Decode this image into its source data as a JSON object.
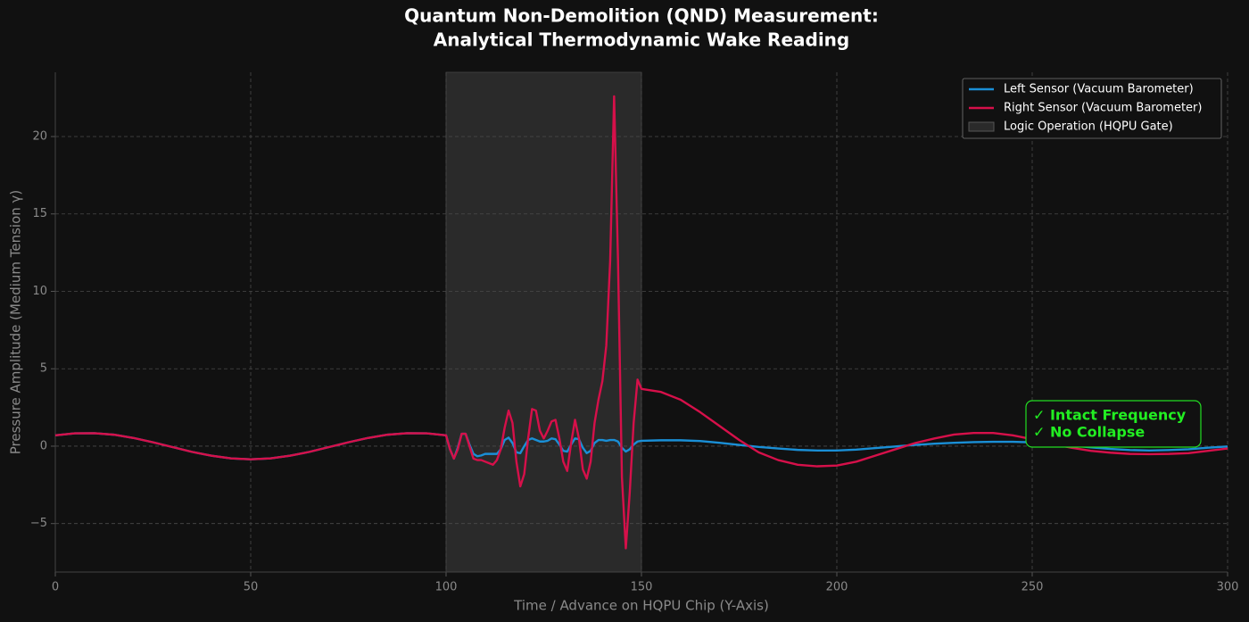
{
  "chart_data": {
    "type": "line",
    "title": [
      "Quantum Non-Demolition (QND) Measurement:",
      "Analytical Thermodynamic Wake Reading"
    ],
    "x_label": "Time / Advance on HQPU Chip (Y-Axis)",
    "y_label": "Pressure Amplitude (Medium Tension γ)",
    "xlim": [
      0,
      300
    ],
    "xticks": [
      0,
      50,
      100,
      150,
      200,
      250,
      300
    ],
    "ylim": [
      -8.13,
      24.15
    ],
    "yticks": [
      {
        "value": -5,
        "label": "−5"
      },
      0,
      5,
      10,
      15,
      20
    ],
    "grid": true,
    "legend": "upper right",
    "shaded_region": {
      "label": "Logic Operation (HQPU Gate)",
      "x": [
        100,
        150
      ],
      "color": "#2a2a2a"
    },
    "annotation": [
      "✓ Intact Frequency",
      "✓ No Collapse"
    ],
    "x": [
      0,
      5,
      10,
      15,
      20,
      25,
      30,
      35,
      40,
      45,
      50,
      55,
      60,
      65,
      70,
      75,
      80,
      85,
      90,
      95,
      100,
      101,
      102,
      103,
      104,
      105,
      106,
      107,
      108,
      109,
      110,
      111,
      112,
      113,
      114,
      115,
      116,
      117,
      118,
      119,
      120,
      121,
      122,
      123,
      124,
      125,
      126,
      127,
      128,
      129,
      130,
      131,
      132,
      133,
      134,
      135,
      136,
      137,
      138,
      139,
      140,
      141,
      142,
      143,
      144,
      145,
      146,
      147,
      148,
      149,
      150,
      155,
      160,
      165,
      170,
      175,
      180,
      185,
      190,
      195,
      200,
      205,
      210,
      215,
      220,
      225,
      230,
      235,
      240,
      245,
      250,
      255,
      260,
      265,
      270,
      275,
      280,
      285,
      290,
      295,
      300
    ],
    "series": [
      {
        "name": "Left Sensor (Vacuum Barometer)",
        "color": "#1a8fd6",
        "values": [
          0.7,
          0.83,
          0.84,
          0.74,
          0.53,
          0.25,
          -0.06,
          -0.37,
          -0.62,
          -0.79,
          -0.85,
          -0.79,
          -0.62,
          -0.37,
          -0.06,
          0.25,
          0.53,
          0.74,
          0.84,
          0.83,
          0.7,
          -0.2,
          -0.8,
          -0.1,
          0.8,
          0.8,
          0.1,
          -0.5,
          -0.65,
          -0.6,
          -0.5,
          -0.5,
          -0.5,
          -0.5,
          -0.2,
          0.4,
          0.55,
          0.2,
          -0.4,
          -0.45,
          0.0,
          0.4,
          0.5,
          0.4,
          0.3,
          0.3,
          0.35,
          0.5,
          0.45,
          0.1,
          -0.3,
          -0.35,
          0.1,
          0.5,
          0.45,
          -0.1,
          -0.45,
          -0.3,
          0.2,
          0.4,
          0.4,
          0.35,
          0.4,
          0.4,
          0.3,
          -0.1,
          -0.35,
          -0.2,
          0.1,
          0.3,
          0.35,
          0.38,
          0.38,
          0.33,
          0.22,
          0.08,
          -0.05,
          -0.15,
          -0.24,
          -0.28,
          -0.28,
          -0.22,
          -0.12,
          -0.02,
          0.08,
          0.16,
          0.22,
          0.26,
          0.28,
          0.28,
          0.25,
          0.15,
          0.05,
          -0.08,
          -0.18,
          -0.25,
          -0.28,
          -0.25,
          -0.2,
          -0.1,
          -0.02
        ]
      },
      {
        "name": "Right Sensor (Vacuum Barometer)",
        "color": "#d6104a",
        "values": [
          0.7,
          0.83,
          0.84,
          0.74,
          0.53,
          0.25,
          -0.06,
          -0.37,
          -0.62,
          -0.79,
          -0.85,
          -0.79,
          -0.62,
          -0.37,
          -0.06,
          0.25,
          0.53,
          0.74,
          0.84,
          0.83,
          0.7,
          -0.2,
          -0.8,
          -0.2,
          0.8,
          0.8,
          0.0,
          -0.8,
          -0.9,
          -0.9,
          -1.0,
          -1.1,
          -1.2,
          -0.9,
          -0.2,
          1.2,
          2.3,
          1.5,
          -1.0,
          -2.6,
          -1.8,
          0.5,
          2.4,
          2.3,
          1.0,
          0.5,
          1.0,
          1.6,
          1.7,
          0.5,
          -1.0,
          -1.6,
          0.2,
          1.7,
          0.5,
          -1.5,
          -2.1,
          -1.0,
          1.5,
          3.0,
          4.2,
          6.5,
          12.0,
          22.6,
          12.0,
          -2.0,
          -6.6,
          -3.0,
          1.5,
          4.3,
          3.7,
          3.5,
          3.0,
          2.2,
          1.3,
          0.4,
          -0.4,
          -0.9,
          -1.2,
          -1.3,
          -1.25,
          -1.0,
          -0.6,
          -0.2,
          0.2,
          0.5,
          0.75,
          0.85,
          0.85,
          0.7,
          0.45,
          0.15,
          -0.1,
          -0.3,
          -0.42,
          -0.5,
          -0.52,
          -0.5,
          -0.45,
          -0.3,
          -0.15
        ]
      }
    ]
  }
}
